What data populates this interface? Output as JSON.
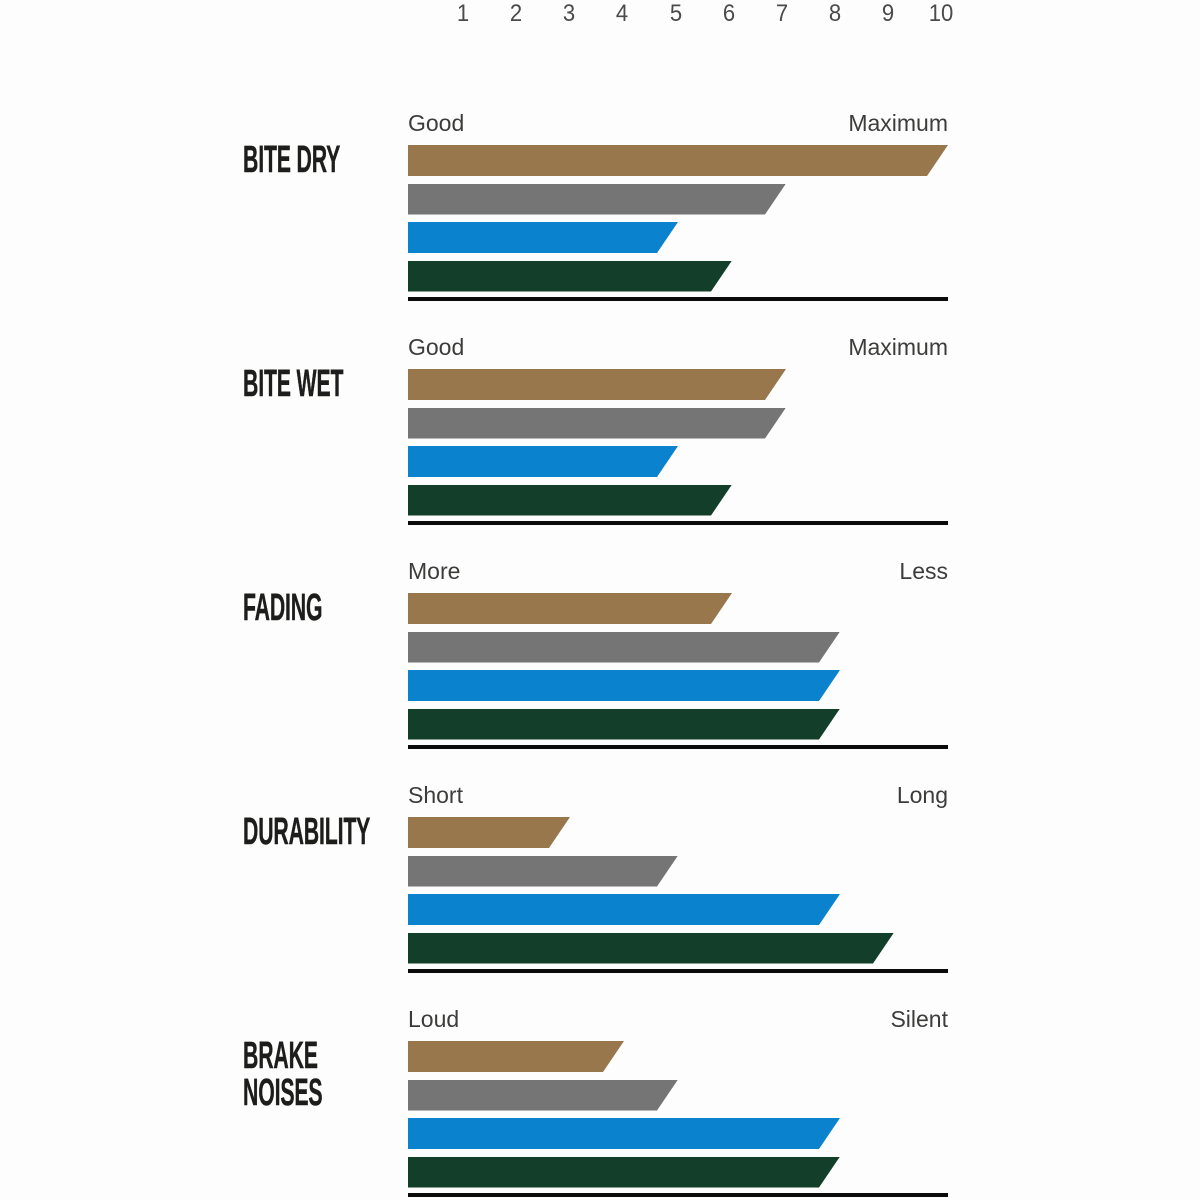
{
  "page": {
    "background": "#fdfdfd"
  },
  "chart_data": {
    "type": "bar",
    "orientation": "horizontal",
    "title": "",
    "axis": {
      "min": 0,
      "max": 10,
      "ticks": [
        1,
        2,
        3,
        4,
        5,
        6,
        7,
        8,
        9,
        10
      ],
      "tick_position": "top",
      "grid": false,
      "legend": "none"
    },
    "palette": [
      {
        "name": "gold",
        "color": "#97774B"
      },
      {
        "name": "gray",
        "color": "#757575"
      },
      {
        "name": "blue",
        "color": "#0A82CE"
      },
      {
        "name": "green",
        "color": "#133F2A"
      }
    ],
    "groups": [
      {
        "label": "BITE DRY",
        "label_lines": [
          "BITE DRY"
        ],
        "scale_left": "Good",
        "scale_right": "Maximum",
        "values": [
          10,
          7,
          5,
          6
        ]
      },
      {
        "label": "BITE WET",
        "label_lines": [
          "BITE WET"
        ],
        "scale_left": "Good",
        "scale_right": "Maximum",
        "values": [
          7,
          7,
          5,
          6
        ]
      },
      {
        "label": "FADING",
        "label_lines": [
          "FADING"
        ],
        "scale_left": "More",
        "scale_right": "Less",
        "values": [
          6,
          8,
          8,
          8
        ]
      },
      {
        "label": "DURABILITY",
        "label_lines": [
          "DURABILITY"
        ],
        "scale_left": "Short",
        "scale_right": "Long",
        "values": [
          3,
          5,
          8,
          9
        ]
      },
      {
        "label": "BRAKE NOISES",
        "label_lines": [
          "BRAKE",
          "NOISES"
        ],
        "scale_left": "Loud",
        "scale_right": "Silent",
        "values": [
          4,
          5,
          8,
          8
        ]
      }
    ],
    "colors": {
      "baseline": "#0a0a0a",
      "category_label": "#1d1d1b",
      "axis_label": "#3c3c3b",
      "tick_label": "#4a4a4a"
    }
  }
}
